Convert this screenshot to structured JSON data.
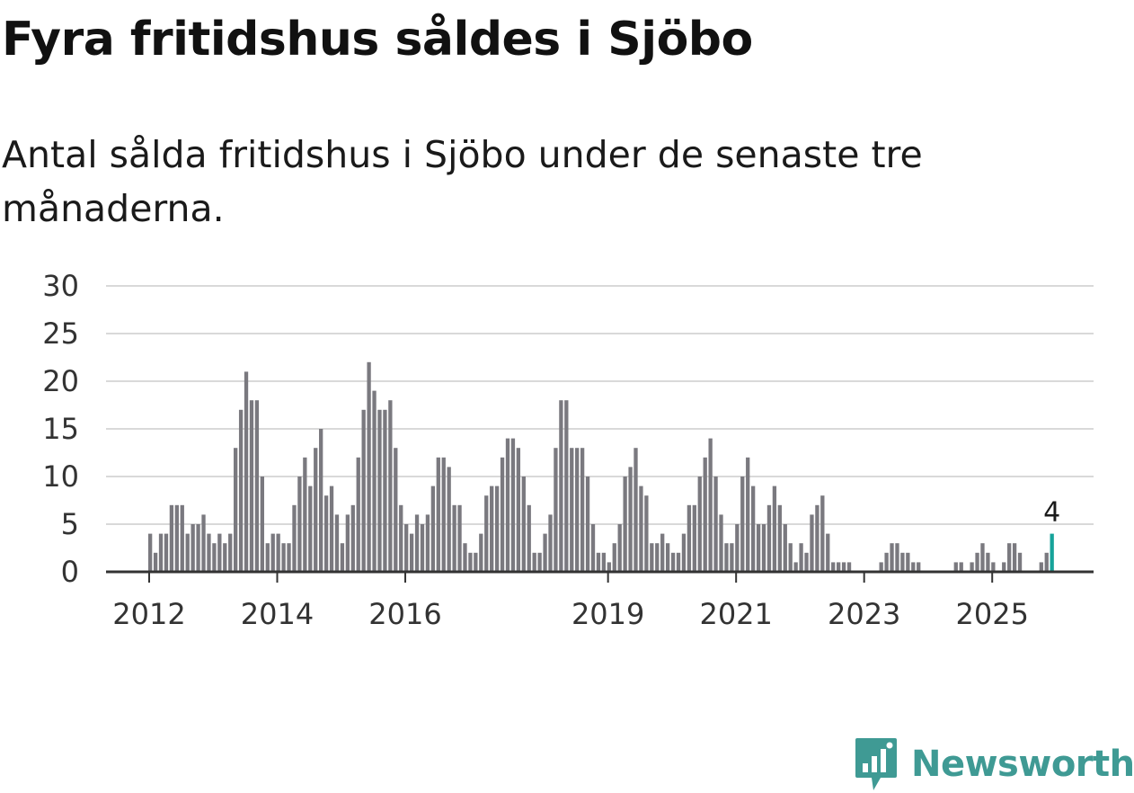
{
  "title": "Fyra fritidshus såldes i Sjöbo",
  "subtitle": "Antal sålda fritidshus i Sjöbo under de senaste tre månaderna.",
  "brand": {
    "name": "Newsworthy",
    "color": "#3f9a94",
    "icon": "newsworthy-logo-icon"
  },
  "colors": {
    "bar": "#7a797f",
    "highlight": "#16a39a",
    "grid": "#d9d9d9",
    "axis": "#333333"
  },
  "chart_data": {
    "type": "bar",
    "x_start": "2012-01",
    "x_interval": "month",
    "values": [
      4,
      2,
      4,
      4,
      7,
      7,
      7,
      4,
      5,
      5,
      6,
      4,
      3,
      4,
      3,
      4,
      13,
      17,
      21,
      18,
      18,
      10,
      3,
      4,
      4,
      3,
      3,
      7,
      10,
      12,
      9,
      13,
      15,
      8,
      9,
      6,
      3,
      6,
      7,
      12,
      17,
      22,
      19,
      17,
      17,
      18,
      13,
      7,
      5,
      4,
      6,
      5,
      6,
      9,
      12,
      12,
      11,
      7,
      7,
      3,
      2,
      2,
      4,
      8,
      9,
      9,
      12,
      14,
      14,
      13,
      10,
      7,
      2,
      2,
      4,
      6,
      13,
      18,
      18,
      13,
      13,
      13,
      10,
      5,
      2,
      2,
      1,
      3,
      5,
      10,
      11,
      13,
      9,
      8,
      3,
      3,
      4,
      3,
      2,
      2,
      4,
      7,
      7,
      10,
      12,
      14,
      10,
      6,
      3,
      3,
      5,
      10,
      12,
      9,
      5,
      5,
      7,
      9,
      7,
      5,
      3,
      1,
      3,
      2,
      6,
      7,
      8,
      4,
      1,
      1,
      1,
      1,
      0,
      0,
      0,
      0,
      0,
      1,
      2,
      3,
      3,
      2,
      2,
      1,
      1,
      0,
      0,
      0,
      0,
      0,
      0,
      1,
      1,
      0,
      1,
      2,
      3,
      2,
      1,
      0,
      1,
      3,
      3,
      2,
      0,
      0,
      0,
      1,
      2,
      4
    ],
    "highlight_last": true,
    "highlight_label": "4",
    "ylim": [
      0,
      30
    ],
    "yticks": [
      0,
      5,
      10,
      15,
      20,
      25,
      30
    ],
    "xticks": [
      {
        "label": "2012",
        "month_index": 0
      },
      {
        "label": "2014",
        "month_index": 24
      },
      {
        "label": "2016",
        "month_index": 48
      },
      {
        "label": "2019",
        "month_index": 86
      },
      {
        "label": "2021",
        "month_index": 110
      },
      {
        "label": "2023",
        "month_index": 134
      },
      {
        "label": "2025",
        "month_index": 158
      }
    ],
    "grid": true,
    "xlabel": "",
    "ylabel": ""
  }
}
